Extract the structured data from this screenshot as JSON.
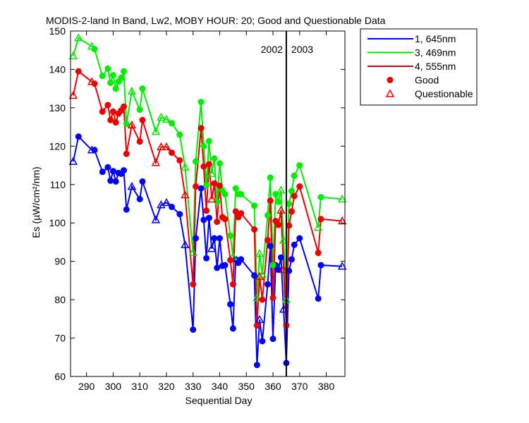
{
  "chart_data": {
    "type": "line",
    "title": "MODIS-2-land In Band,  Lw2, MOBY HOUR: 20;  Good and Questionable Data",
    "xlabel": "Sequential Day",
    "ylabel": "Es (µW/cm²/nm)",
    "xlim": [
      284,
      387
    ],
    "ylim": [
      60,
      150
    ],
    "xticks": [
      290,
      300,
      310,
      320,
      330,
      340,
      350,
      360,
      370,
      380
    ],
    "yticks": [
      60,
      70,
      80,
      90,
      100,
      110,
      120,
      130,
      140,
      150
    ],
    "grid": false,
    "legend_position": "outside-top-right",
    "year_divider": {
      "x": 365,
      "left_label": "2002",
      "right_label": "2003"
    },
    "marker_legend": {
      "good": "Good",
      "questionable": "Questionable"
    },
    "series": [
      {
        "name": "1, 645nm",
        "color": "#0000ff",
        "points": [
          {
            "x": 285,
            "y": 116,
            "q": "Q"
          },
          {
            "x": 287,
            "y": 122.5,
            "q": "G"
          },
          {
            "x": 292,
            "y": 119,
            "q": "Q"
          },
          {
            "x": 293,
            "y": 119,
            "q": "G"
          },
          {
            "x": 296,
            "y": 113.3,
            "q": "G"
          },
          {
            "x": 298,
            "y": 114.5,
            "q": "G"
          },
          {
            "x": 299,
            "y": 111,
            "q": "G"
          },
          {
            "x": 300,
            "y": 113.5,
            "q": "G"
          },
          {
            "x": 301,
            "y": 110.8,
            "q": "G"
          },
          {
            "x": 302,
            "y": 113,
            "q": "G"
          },
          {
            "x": 303,
            "y": 112.8,
            "q": "G"
          },
          {
            "x": 304,
            "y": 113.7,
            "q": "G"
          },
          {
            "x": 305,
            "y": 103.5,
            "q": "G"
          },
          {
            "x": 307,
            "y": 109.5,
            "q": "Q"
          },
          {
            "x": 310,
            "y": 106.2,
            "q": "G"
          },
          {
            "x": 311,
            "y": 110.8,
            "q": "G"
          },
          {
            "x": 316,
            "y": 100.8,
            "q": "Q"
          },
          {
            "x": 318,
            "y": 104.7,
            "q": "Q"
          },
          {
            "x": 320,
            "y": 105.3,
            "q": "Q"
          },
          {
            "x": 322,
            "y": 104.2,
            "q": "G"
          },
          {
            "x": 325,
            "y": 102.3,
            "q": "G"
          },
          {
            "x": 327,
            "y": 94.3,
            "q": "Q"
          },
          {
            "x": 330,
            "y": 72.2,
            "q": "G"
          },
          {
            "x": 331,
            "y": 96,
            "q": "G"
          },
          {
            "x": 333,
            "y": 109,
            "q": "G"
          },
          {
            "x": 334,
            "y": 100.8,
            "q": "G"
          },
          {
            "x": 335,
            "y": 90.8,
            "q": "G"
          },
          {
            "x": 336,
            "y": 101.3,
            "q": "G"
          },
          {
            "x": 337,
            "y": 93.3,
            "q": "Q"
          },
          {
            "x": 338,
            "y": 96,
            "q": "G"
          },
          {
            "x": 339,
            "y": 88.3,
            "q": "G"
          },
          {
            "x": 340,
            "y": 96,
            "q": "G"
          },
          {
            "x": 341,
            "y": 88.8,
            "q": "G"
          },
          {
            "x": 342,
            "y": 89,
            "q": "G"
          },
          {
            "x": 344,
            "y": 78.8,
            "q": "G"
          },
          {
            "x": 345,
            "y": 72.5,
            "q": "G"
          },
          {
            "x": 346,
            "y": 90.5,
            "q": "G"
          },
          {
            "x": 347,
            "y": 89.6,
            "q": "G"
          },
          {
            "x": 348,
            "y": 90.5,
            "q": "G"
          },
          {
            "x": 353,
            "y": 86.3,
            "q": "G"
          },
          {
            "x": 354,
            "y": 63,
            "q": "G"
          },
          {
            "x": 355,
            "y": 74.8,
            "q": "Q"
          },
          {
            "x": 356,
            "y": 69.2,
            "q": "G"
          },
          {
            "x": 358,
            "y": 84,
            "q": "G"
          },
          {
            "x": 359,
            "y": 94,
            "q": "G"
          },
          {
            "x": 360,
            "y": 69.8,
            "q": "G"
          },
          {
            "x": 361,
            "y": 89,
            "q": "G"
          },
          {
            "x": 362,
            "y": 87.8,
            "q": "G"
          },
          {
            "x": 363,
            "y": 91,
            "q": "G"
          },
          {
            "x": 364,
            "y": 77.5,
            "q": "Q"
          },
          {
            "x": 365,
            "y": 63.5,
            "q": "G"
          },
          {
            "x": 366,
            "y": 87.5,
            "q": "G"
          },
          {
            "x": 367,
            "y": 90.5,
            "q": "G"
          },
          {
            "x": 368,
            "y": 94.3,
            "q": "G"
          },
          {
            "x": 370,
            "y": 96,
            "q": "G"
          },
          {
            "x": 377,
            "y": 80.3,
            "q": "G"
          },
          {
            "x": 378,
            "y": 89,
            "q": "G"
          },
          {
            "x": 386,
            "y": 88.7,
            "q": "Q"
          }
        ]
      },
      {
        "name": "3, 469nm",
        "color": "#00ee00",
        "points": [
          {
            "x": 285,
            "y": 143.5,
            "q": "Q"
          },
          {
            "x": 287,
            "y": 148.2,
            "q": "Q"
          },
          {
            "x": 292,
            "y": 146,
            "q": "Q"
          },
          {
            "x": 293,
            "y": 145.3,
            "q": "G"
          },
          {
            "x": 296,
            "y": 138.3,
            "q": "G"
          },
          {
            "x": 298,
            "y": 140.2,
            "q": "G"
          },
          {
            "x": 299,
            "y": 136.5,
            "q": "G"
          },
          {
            "x": 300,
            "y": 138.5,
            "q": "G"
          },
          {
            "x": 301,
            "y": 135,
            "q": "G"
          },
          {
            "x": 302,
            "y": 136.8,
            "q": "G"
          },
          {
            "x": 303,
            "y": 137.8,
            "q": "G"
          },
          {
            "x": 304,
            "y": 139.5,
            "q": "G"
          },
          {
            "x": 305,
            "y": 125.8,
            "q": "G"
          },
          {
            "x": 307,
            "y": 134.3,
            "q": "Q"
          },
          {
            "x": 310,
            "y": 129.5,
            "q": "G"
          },
          {
            "x": 311,
            "y": 135,
            "q": "G"
          },
          {
            "x": 316,
            "y": 123.8,
            "q": "Q"
          },
          {
            "x": 318,
            "y": 127.5,
            "q": "Q"
          },
          {
            "x": 320,
            "y": 127,
            "q": "Q"
          },
          {
            "x": 322,
            "y": 126,
            "q": "G"
          },
          {
            "x": 325,
            "y": 123,
            "q": "G"
          },
          {
            "x": 327,
            "y": 114.5,
            "q": "Q"
          },
          {
            "x": 330,
            "y": 92.3,
            "q": "Q"
          },
          {
            "x": 331,
            "y": 116,
            "q": "G"
          },
          {
            "x": 333,
            "y": 131.5,
            "q": "G"
          },
          {
            "x": 334,
            "y": 120,
            "q": "G"
          },
          {
            "x": 335,
            "y": 109.8,
            "q": "G"
          },
          {
            "x": 336,
            "y": 121.3,
            "q": "G"
          },
          {
            "x": 337,
            "y": 112.8,
            "q": "Q"
          },
          {
            "x": 338,
            "y": 116.8,
            "q": "G"
          },
          {
            "x": 339,
            "y": 105.5,
            "q": "G"
          },
          {
            "x": 340,
            "y": 115.5,
            "q": "G"
          },
          {
            "x": 341,
            "y": 108.5,
            "q": "G"
          },
          {
            "x": 342,
            "y": 107.5,
            "q": "G"
          },
          {
            "x": 344,
            "y": 96.7,
            "q": "G"
          },
          {
            "x": 345,
            "y": 91.2,
            "q": "Q"
          },
          {
            "x": 346,
            "y": 109,
            "q": "G"
          },
          {
            "x": 347,
            "y": 107.5,
            "q": "G"
          },
          {
            "x": 348,
            "y": 107.5,
            "q": "G"
          },
          {
            "x": 353,
            "y": 104.5,
            "q": "G"
          },
          {
            "x": 354,
            "y": 80.5,
            "q": "Q"
          },
          {
            "x": 355,
            "y": 92,
            "q": "Q"
          },
          {
            "x": 356,
            "y": 86.5,
            "q": "Q"
          },
          {
            "x": 358,
            "y": 102,
            "q": "G"
          },
          {
            "x": 359,
            "y": 111.8,
            "q": "G"
          },
          {
            "x": 360,
            "y": 89,
            "q": "G"
          },
          {
            "x": 361,
            "y": 107.5,
            "q": "G"
          },
          {
            "x": 362,
            "y": 105.5,
            "q": "G"
          },
          {
            "x": 363,
            "y": 108.5,
            "q": "Q"
          },
          {
            "x": 364,
            "y": 95.5,
            "q": "Q"
          },
          {
            "x": 365,
            "y": 80,
            "q": "Q"
          },
          {
            "x": 366,
            "y": 105,
            "q": "G"
          },
          {
            "x": 367,
            "y": 108.3,
            "q": "G"
          },
          {
            "x": 368,
            "y": 112.3,
            "q": "G"
          },
          {
            "x": 370,
            "y": 115,
            "q": "G"
          },
          {
            "x": 377,
            "y": 98.8,
            "q": "Q"
          },
          {
            "x": 378,
            "y": 106.7,
            "q": "G"
          },
          {
            "x": 386,
            "y": 106.2,
            "q": "Q"
          }
        ]
      },
      {
        "name": "4, 555nm",
        "color": "#ee0000",
        "points": [
          {
            "x": 285,
            "y": 133.2,
            "q": "Q"
          },
          {
            "x": 287,
            "y": 139.5,
            "q": "G"
          },
          {
            "x": 292,
            "y": 136.8,
            "q": "Q"
          },
          {
            "x": 293,
            "y": 136.3,
            "q": "G"
          },
          {
            "x": 296,
            "y": 129,
            "q": "G"
          },
          {
            "x": 298,
            "y": 130.7,
            "q": "G"
          },
          {
            "x": 299,
            "y": 126.8,
            "q": "G"
          },
          {
            "x": 300,
            "y": 129,
            "q": "G"
          },
          {
            "x": 301,
            "y": 126.2,
            "q": "G"
          },
          {
            "x": 302,
            "y": 128.5,
            "q": "G"
          },
          {
            "x": 303,
            "y": 129.3,
            "q": "G"
          },
          {
            "x": 304,
            "y": 130.3,
            "q": "G"
          },
          {
            "x": 305,
            "y": 118,
            "q": "G"
          },
          {
            "x": 307,
            "y": 125.5,
            "q": "Q"
          },
          {
            "x": 310,
            "y": 121.2,
            "q": "G"
          },
          {
            "x": 311,
            "y": 126.8,
            "q": "G"
          },
          {
            "x": 316,
            "y": 115.7,
            "q": "Q"
          },
          {
            "x": 318,
            "y": 119.8,
            "q": "Q"
          },
          {
            "x": 320,
            "y": 119.8,
            "q": "Q"
          },
          {
            "x": 322,
            "y": 118.3,
            "q": "G"
          },
          {
            "x": 325,
            "y": 116.3,
            "q": "G"
          },
          {
            "x": 327,
            "y": 107.3,
            "q": "Q"
          },
          {
            "x": 330,
            "y": 84,
            "q": "G"
          },
          {
            "x": 331,
            "y": 109.5,
            "q": "G"
          },
          {
            "x": 333,
            "y": 124.7,
            "q": "G"
          },
          {
            "x": 334,
            "y": 114.7,
            "q": "G"
          },
          {
            "x": 335,
            "y": 103.2,
            "q": "G"
          },
          {
            "x": 336,
            "y": 115.3,
            "q": "G"
          },
          {
            "x": 337,
            "y": 106.2,
            "q": "Q"
          },
          {
            "x": 338,
            "y": 110.3,
            "q": "G"
          },
          {
            "x": 339,
            "y": 100.3,
            "q": "G"
          },
          {
            "x": 340,
            "y": 109.7,
            "q": "G"
          },
          {
            "x": 341,
            "y": 101.5,
            "q": "G"
          },
          {
            "x": 342,
            "y": 101,
            "q": "G"
          },
          {
            "x": 344,
            "y": 90.3,
            "q": "G"
          },
          {
            "x": 345,
            "y": 84,
            "q": "G"
          },
          {
            "x": 346,
            "y": 103,
            "q": "G"
          },
          {
            "x": 347,
            "y": 101.5,
            "q": "G"
          },
          {
            "x": 348,
            "y": 102.5,
            "q": "G"
          },
          {
            "x": 353,
            "y": 98.3,
            "q": "G"
          },
          {
            "x": 354,
            "y": 73.3,
            "q": "G"
          },
          {
            "x": 355,
            "y": 86,
            "q": "Q"
          },
          {
            "x": 356,
            "y": 80,
            "q": "G"
          },
          {
            "x": 358,
            "y": 95.5,
            "q": "G"
          },
          {
            "x": 359,
            "y": 105.8,
            "q": "G"
          },
          {
            "x": 360,
            "y": 80.5,
            "q": "G"
          },
          {
            "x": 361,
            "y": 100.5,
            "q": "G"
          },
          {
            "x": 362,
            "y": 99.5,
            "q": "G"
          },
          {
            "x": 363,
            "y": 103.3,
            "q": "Q"
          },
          {
            "x": 364,
            "y": 87.8,
            "q": "Q"
          },
          {
            "x": 365,
            "y": 73.3,
            "q": "G"
          },
          {
            "x": 366,
            "y": 99.3,
            "q": "G"
          },
          {
            "x": 367,
            "y": 103,
            "q": "G"
          },
          {
            "x": 368,
            "y": 107,
            "q": "G"
          },
          {
            "x": 370,
            "y": 109.5,
            "q": "G"
          },
          {
            "x": 377,
            "y": 92.2,
            "q": "G"
          },
          {
            "x": 378,
            "y": 101,
            "q": "G"
          },
          {
            "x": 386,
            "y": 100.5,
            "q": "Q"
          }
        ]
      }
    ]
  }
}
